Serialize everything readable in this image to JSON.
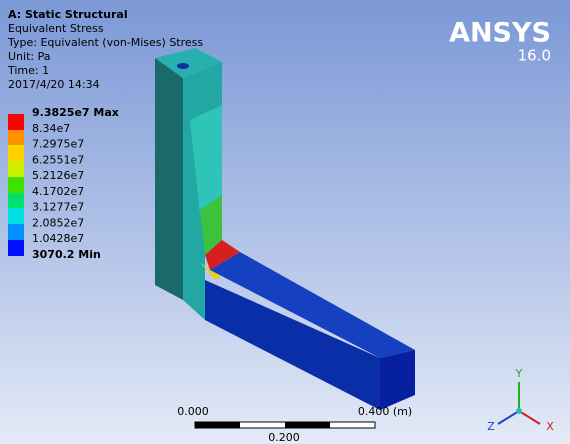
{
  "header": {
    "title": "A: Static Structural",
    "lines": [
      "Equivalent Stress",
      "Type: Equivalent (von-Mises) Stress",
      "Unit: Pa",
      "Time: 1",
      "2017/4/20 14:34"
    ]
  },
  "legend": {
    "items": [
      "9.3825e7 Max",
      "8.34e7",
      "7.2975e7",
      "6.2551e7",
      "5.2126e7",
      "4.1702e7",
      "3.1277e7",
      "2.0852e7",
      "1.0428e7",
      "3070.2 Min"
    ]
  },
  "logo": {
    "name": "ANSYS",
    "version": "16.0"
  },
  "scale_bar": {
    "left": "0.000",
    "right": "0.400 (m)",
    "middle": "0.200"
  },
  "triad": {
    "y": "Y",
    "z": "Z",
    "x": "X"
  }
}
